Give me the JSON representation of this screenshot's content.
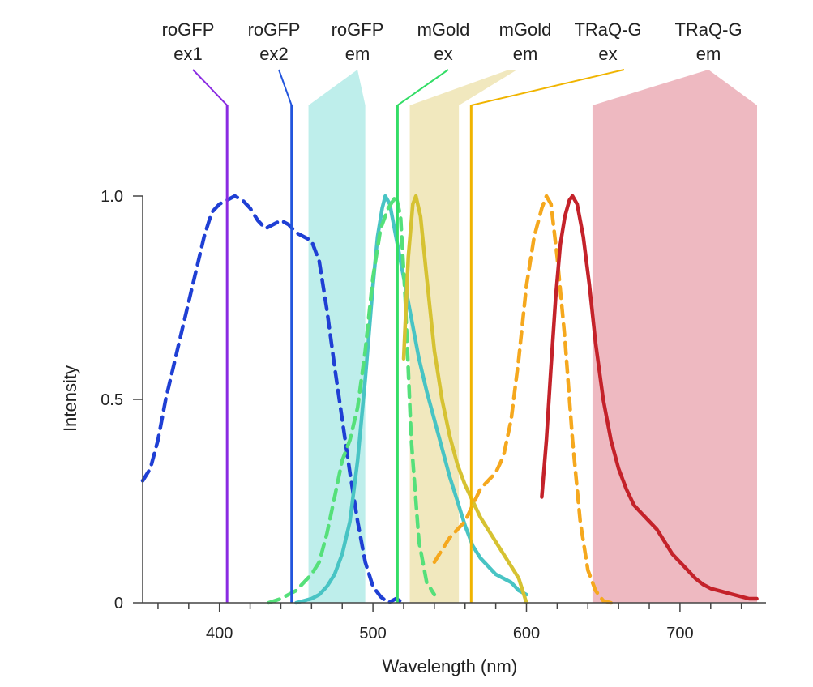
{
  "chart_data": {
    "type": "line",
    "title": "",
    "xlabel": "Wavelength (nm)",
    "ylabel": "Intensity",
    "xlim": [
      350,
      750
    ],
    "ylim": [
      0,
      1.0
    ],
    "x_ticks": [
      400,
      500,
      600,
      700
    ],
    "x_tick_labels": [
      "400",
      "500",
      "600",
      "700"
    ],
    "y_ticks": [
      0,
      0.5,
      1.0
    ],
    "y_tick_labels": [
      "0",
      "0.5",
      "1.0"
    ],
    "excitation_lines": [
      {
        "name": "roGFP ex1",
        "label_lines": [
          "roGFP",
          "ex1"
        ],
        "wavelength": 405,
        "color": "#8a2be2"
      },
      {
        "name": "roGFP ex2",
        "label_lines": [
          "roGFP",
          "ex2"
        ],
        "wavelength": 447,
        "color": "#2255dd"
      },
      {
        "name": "mGold ex",
        "label_lines": [
          "mGold",
          "ex"
        ],
        "wavelength": 516,
        "color": "#33dd66"
      },
      {
        "name": "TRaQ-G ex",
        "label_lines": [
          "TRaQ-G",
          "ex"
        ],
        "wavelength": 564,
        "color": "#f0b400"
      }
    ],
    "emission_bands": [
      {
        "name": "roGFP em",
        "label_lines": [
          "roGFP",
          "em"
        ],
        "range": [
          458,
          495
        ],
        "color": "#a8e8e4"
      },
      {
        "name": "mGold em",
        "label_lines": [
          "mGold",
          "em"
        ],
        "range": [
          524,
          556
        ],
        "color": "#ece0a8"
      },
      {
        "name": "TRaQ-G em",
        "label_lines": [
          "TRaQ-G",
          "em"
        ],
        "range": [
          643,
          755
        ],
        "color": "#e8a2ac"
      }
    ],
    "series": [
      {
        "name": "roGFP excitation",
        "style": "dashed",
        "color": "#1f3fd4",
        "points": [
          [
            350,
            0.3
          ],
          [
            355,
            0.33
          ],
          [
            360,
            0.4
          ],
          [
            365,
            0.5
          ],
          [
            370,
            0.58
          ],
          [
            375,
            0.66
          ],
          [
            380,
            0.74
          ],
          [
            385,
            0.82
          ],
          [
            390,
            0.9
          ],
          [
            395,
            0.96
          ],
          [
            400,
            0.98
          ],
          [
            405,
            0.99
          ],
          [
            410,
            1.0
          ],
          [
            415,
            0.99
          ],
          [
            420,
            0.97
          ],
          [
            425,
            0.94
          ],
          [
            430,
            0.92
          ],
          [
            435,
            0.93
          ],
          [
            440,
            0.94
          ],
          [
            445,
            0.93
          ],
          [
            450,
            0.91
          ],
          [
            455,
            0.9
          ],
          [
            460,
            0.89
          ],
          [
            465,
            0.84
          ],
          [
            470,
            0.72
          ],
          [
            475,
            0.58
          ],
          [
            480,
            0.45
          ],
          [
            485,
            0.32
          ],
          [
            490,
            0.2
          ],
          [
            495,
            0.1
          ],
          [
            500,
            0.04
          ],
          [
            505,
            0.015
          ],
          [
            510,
            0.0
          ],
          [
            515,
            0.01
          ],
          [
            520,
            0.0
          ]
        ]
      },
      {
        "name": "roGFP emission",
        "style": "solid",
        "color": "#48c4c4",
        "points": [
          [
            450,
            0.0
          ],
          [
            455,
            0.005
          ],
          [
            460,
            0.01
          ],
          [
            465,
            0.02
          ],
          [
            470,
            0.04
          ],
          [
            475,
            0.07
          ],
          [
            480,
            0.12
          ],
          [
            485,
            0.2
          ],
          [
            490,
            0.35
          ],
          [
            495,
            0.55
          ],
          [
            500,
            0.78
          ],
          [
            503,
            0.9
          ],
          [
            506,
            0.97
          ],
          [
            508,
            1.0
          ],
          [
            511,
            0.98
          ],
          [
            515,
            0.9
          ],
          [
            520,
            0.8
          ],
          [
            525,
            0.7
          ],
          [
            530,
            0.6
          ],
          [
            535,
            0.52
          ],
          [
            540,
            0.45
          ],
          [
            545,
            0.38
          ],
          [
            550,
            0.31
          ],
          [
            555,
            0.25
          ],
          [
            560,
            0.19
          ],
          [
            565,
            0.14
          ],
          [
            570,
            0.11
          ],
          [
            575,
            0.09
          ],
          [
            580,
            0.07
          ],
          [
            585,
            0.06
          ],
          [
            590,
            0.05
          ],
          [
            595,
            0.03
          ],
          [
            600,
            0.02
          ]
        ]
      },
      {
        "name": "mGold excitation",
        "style": "dashed",
        "color": "#55e07a",
        "points": [
          [
            432,
            0.0
          ],
          [
            440,
            0.01
          ],
          [
            450,
            0.03
          ],
          [
            460,
            0.07
          ],
          [
            465,
            0.1
          ],
          [
            470,
            0.17
          ],
          [
            475,
            0.26
          ],
          [
            480,
            0.35
          ],
          [
            485,
            0.4
          ],
          [
            490,
            0.48
          ],
          [
            495,
            0.62
          ],
          [
            500,
            0.8
          ],
          [
            505,
            0.92
          ],
          [
            510,
            0.97
          ],
          [
            515,
            1.0
          ],
          [
            518,
            0.95
          ],
          [
            521,
            0.75
          ],
          [
            525,
            0.4
          ],
          [
            530,
            0.15
          ],
          [
            535,
            0.05
          ],
          [
            540,
            0.02
          ]
        ]
      },
      {
        "name": "mGold emission",
        "style": "solid",
        "color": "#d6c232",
        "points": [
          [
            520,
            0.6
          ],
          [
            523,
            0.85
          ],
          [
            526,
            0.98
          ],
          [
            528,
            1.0
          ],
          [
            531,
            0.95
          ],
          [
            535,
            0.8
          ],
          [
            540,
            0.62
          ],
          [
            545,
            0.5
          ],
          [
            550,
            0.41
          ],
          [
            555,
            0.34
          ],
          [
            560,
            0.29
          ],
          [
            565,
            0.25
          ],
          [
            570,
            0.21
          ],
          [
            575,
            0.18
          ],
          [
            580,
            0.15
          ],
          [
            585,
            0.12
          ],
          [
            590,
            0.09
          ],
          [
            595,
            0.06
          ],
          [
            600,
            0.0
          ]
        ]
      },
      {
        "name": "TRaQ-G excitation",
        "style": "dashed",
        "color": "#f5a81e",
        "points": [
          [
            540,
            0.1
          ],
          [
            545,
            0.13
          ],
          [
            550,
            0.16
          ],
          [
            555,
            0.18
          ],
          [
            560,
            0.2
          ],
          [
            565,
            0.24
          ],
          [
            570,
            0.28
          ],
          [
            575,
            0.3
          ],
          [
            580,
            0.32
          ],
          [
            585,
            0.36
          ],
          [
            590,
            0.45
          ],
          [
            595,
            0.6
          ],
          [
            600,
            0.78
          ],
          [
            605,
            0.9
          ],
          [
            610,
            0.97
          ],
          [
            613,
            1.0
          ],
          [
            616,
            0.98
          ],
          [
            620,
            0.85
          ],
          [
            625,
            0.65
          ],
          [
            630,
            0.4
          ],
          [
            635,
            0.2
          ],
          [
            640,
            0.08
          ],
          [
            645,
            0.03
          ],
          [
            650,
            0.005
          ],
          [
            655,
            0.0
          ]
        ]
      },
      {
        "name": "TRaQ-G emission",
        "style": "solid",
        "color": "#c4222a",
        "points": [
          [
            610,
            0.26
          ],
          [
            613,
            0.4
          ],
          [
            616,
            0.58
          ],
          [
            619,
            0.75
          ],
          [
            622,
            0.88
          ],
          [
            625,
            0.95
          ],
          [
            628,
            0.99
          ],
          [
            630,
            1.0
          ],
          [
            633,
            0.98
          ],
          [
            637,
            0.9
          ],
          [
            641,
            0.78
          ],
          [
            645,
            0.64
          ],
          [
            650,
            0.5
          ],
          [
            655,
            0.4
          ],
          [
            660,
            0.33
          ],
          [
            665,
            0.28
          ],
          [
            670,
            0.24
          ],
          [
            675,
            0.22
          ],
          [
            680,
            0.2
          ],
          [
            685,
            0.18
          ],
          [
            690,
            0.15
          ],
          [
            695,
            0.12
          ],
          [
            700,
            0.1
          ],
          [
            705,
            0.08
          ],
          [
            710,
            0.06
          ],
          [
            715,
            0.045
          ],
          [
            720,
            0.035
          ],
          [
            725,
            0.03
          ],
          [
            730,
            0.025
          ],
          [
            735,
            0.02
          ],
          [
            740,
            0.015
          ],
          [
            745,
            0.01
          ],
          [
            750,
            0.01
          ]
        ]
      }
    ]
  }
}
